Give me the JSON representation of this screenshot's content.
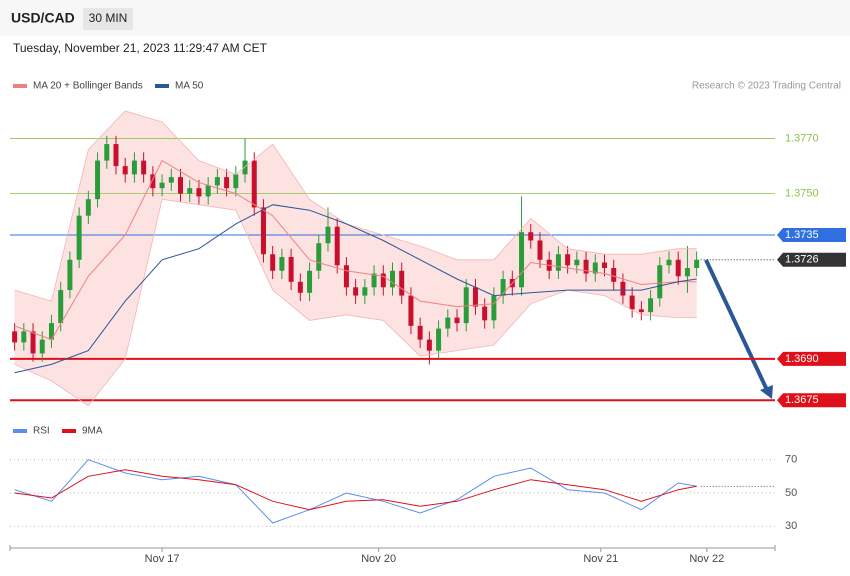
{
  "header": {
    "symbol": "USD/CAD",
    "timeframe": "30 MIN",
    "timestamp": "Tuesday, November 21, 2023 11:29:47 AM CET",
    "credit": "Research © 2023 Trading Central"
  },
  "chart_data": [
    {
      "type": "candlestick",
      "xlim": [
        -0.5,
        82.5
      ],
      "ylim": [
        1.367,
        1.3784
      ],
      "up_color": "#2a9d3a",
      "down_color": "#c8102e",
      "open": [
        1.37,
        1.3696,
        1.37,
        1.3692,
        1.3697,
        1.3703,
        1.3715,
        1.3726,
        1.3742,
        1.3748,
        1.3762,
        1.3768,
        1.376,
        1.3757,
        1.3762,
        1.3757,
        1.3752,
        1.3754,
        1.3756,
        1.375,
        1.3752,
        1.3749,
        1.3753,
        1.3756,
        1.3752,
        1.3757,
        1.3762,
        1.3745,
        1.3728,
        1.3722,
        1.3727,
        1.3718,
        1.3714,
        1.3722,
        1.3732,
        1.3738,
        1.3724,
        1.3716,
        1.3713,
        1.3716,
        1.3721,
        1.3716,
        1.3722,
        1.3713,
        1.3702,
        1.3697,
        1.3693,
        1.3701,
        1.3705,
        1.3703,
        1.3716,
        1.3709,
        1.3704,
        1.3713,
        1.3719,
        1.3716,
        1.3736,
        1.3733,
        1.3726,
        1.3722,
        1.3728,
        1.3724,
        1.3726,
        1.3721,
        1.3725,
        1.3723,
        1.3718,
        1.3713,
        1.3708,
        1.3707,
        1.3712,
        1.3724,
        1.3726,
        1.372,
        1.3723
      ],
      "high": [
        1.3703,
        1.3703,
        1.3703,
        1.37,
        1.3706,
        1.3718,
        1.3729,
        1.3745,
        1.3751,
        1.3765,
        1.3771,
        1.3771,
        1.3763,
        1.3765,
        1.3765,
        1.376,
        1.3757,
        1.3759,
        1.3759,
        1.3755,
        1.3755,
        1.3756,
        1.3759,
        1.3759,
        1.376,
        1.377,
        1.3765,
        1.3748,
        1.3731,
        1.373,
        1.373,
        1.3721,
        1.3725,
        1.3735,
        1.3745,
        1.3741,
        1.3727,
        1.3719,
        1.3719,
        1.3724,
        1.3724,
        1.3725,
        1.3725,
        1.3716,
        1.3705,
        1.37,
        1.3704,
        1.3708,
        1.3708,
        1.3719,
        1.3719,
        1.3712,
        1.3716,
        1.3722,
        1.3722,
        1.3749,
        1.3739,
        1.3736,
        1.3729,
        1.3731,
        1.3731,
        1.3729,
        1.3729,
        1.3728,
        1.3728,
        1.3726,
        1.3721,
        1.3716,
        1.3711,
        1.3715,
        1.3727,
        1.3729,
        1.3729,
        1.3731,
        1.3729
      ],
      "low": [
        1.3693,
        1.3693,
        1.3689,
        1.3689,
        1.3694,
        1.37,
        1.3712,
        1.3723,
        1.3739,
        1.3745,
        1.3759,
        1.3757,
        1.3754,
        1.3754,
        1.3754,
        1.3749,
        1.3749,
        1.3751,
        1.3747,
        1.3747,
        1.3746,
        1.3746,
        1.375,
        1.3749,
        1.3749,
        1.3754,
        1.3742,
        1.3725,
        1.3719,
        1.3719,
        1.3715,
        1.3711,
        1.3711,
        1.3719,
        1.3729,
        1.3721,
        1.3713,
        1.371,
        1.371,
        1.3713,
        1.3713,
        1.3713,
        1.371,
        1.3699,
        1.3694,
        1.3688,
        1.369,
        1.3698,
        1.37,
        1.37,
        1.3706,
        1.3701,
        1.3701,
        1.371,
        1.3713,
        1.3713,
        1.373,
        1.3723,
        1.3719,
        1.3719,
        1.3721,
        1.3721,
        1.3718,
        1.3718,
        1.372,
        1.3715,
        1.371,
        1.3705,
        1.3704,
        1.3704,
        1.3709,
        1.3721,
        1.3717,
        1.3714,
        1.372
      ],
      "close": [
        1.3696,
        1.37,
        1.3692,
        1.3697,
        1.3703,
        1.3715,
        1.3726,
        1.3742,
        1.3748,
        1.3762,
        1.3768,
        1.376,
        1.3757,
        1.3762,
        1.3757,
        1.3752,
        1.3754,
        1.3756,
        1.375,
        1.3752,
        1.3749,
        1.3753,
        1.3756,
        1.3752,
        1.3757,
        1.3762,
        1.3745,
        1.3728,
        1.3722,
        1.3727,
        1.3718,
        1.3714,
        1.3722,
        1.3732,
        1.3738,
        1.3724,
        1.3716,
        1.3713,
        1.3716,
        1.3721,
        1.3716,
        1.3722,
        1.3713,
        1.3702,
        1.3697,
        1.3693,
        1.3701,
        1.3705,
        1.3703,
        1.3716,
        1.3709,
        1.3704,
        1.3713,
        1.3719,
        1.3716,
        1.3736,
        1.3733,
        1.3726,
        1.3722,
        1.3728,
        1.3724,
        1.3726,
        1.3721,
        1.3725,
        1.3723,
        1.3718,
        1.3713,
        1.3708,
        1.3707,
        1.3712,
        1.3724,
        1.3726,
        1.372,
        1.3723,
        1.3726
      ],
      "bands": {
        "name": "MA 20 + Bollinger Bands",
        "color": "#f08080",
        "fill": "#fde2e2",
        "x": [
          0,
          4,
          8,
          12,
          16,
          20,
          24,
          28,
          32,
          36,
          40,
          44,
          48,
          52,
          56,
          60,
          64,
          68,
          72,
          74
        ],
        "upper": [
          1.3715,
          1.3711,
          1.3766,
          1.378,
          1.3776,
          1.3762,
          1.3757,
          1.3768,
          1.3748,
          1.3739,
          1.3735,
          1.3731,
          1.3726,
          1.3726,
          1.3741,
          1.373,
          1.3728,
          1.3728,
          1.373,
          1.373
        ],
        "middle": [
          1.3702,
          1.3697,
          1.372,
          1.3735,
          1.3762,
          1.3754,
          1.375,
          1.3742,
          1.3726,
          1.3722,
          1.372,
          1.3711,
          1.3709,
          1.371,
          1.3725,
          1.3723,
          1.3721,
          1.3717,
          1.3718,
          1.3718
        ],
        "lower": [
          1.3688,
          1.3682,
          1.3673,
          1.369,
          1.3748,
          1.3746,
          1.3744,
          1.3715,
          1.3704,
          1.3706,
          1.3704,
          1.3691,
          1.3693,
          1.3695,
          1.371,
          1.3715,
          1.3713,
          1.3706,
          1.3705,
          1.3705
        ]
      },
      "ma50": {
        "name": "MA 50",
        "color": "#2b5797",
        "x": [
          0,
          4,
          8,
          12,
          16,
          20,
          24,
          28,
          32,
          36,
          40,
          44,
          48,
          52,
          56,
          60,
          64,
          68,
          72,
          74
        ],
        "values": [
          1.3685,
          1.3688,
          1.3693,
          1.3711,
          1.3726,
          1.373,
          1.3739,
          1.3746,
          1.3744,
          1.3739,
          1.3733,
          1.3726,
          1.3719,
          1.3713,
          1.3714,
          1.3715,
          1.3715,
          1.3715,
          1.3718,
          1.3719
        ]
      },
      "levels": [
        {
          "value": 1.377,
          "label": "1.3770",
          "color": "#8bc34a",
          "boxed": false
        },
        {
          "value": 1.375,
          "label": "1.3750",
          "color": "#8bc34a",
          "boxed": false
        },
        {
          "value": 1.3735,
          "label": "1.3735",
          "color": "#2f6fe0",
          "boxed": true
        },
        {
          "value": 1.369,
          "label": "1.3690",
          "color": "#e0101a",
          "boxed": true
        },
        {
          "value": 1.3675,
          "label": "1.3675",
          "color": "#e0101a",
          "boxed": true
        }
      ],
      "current": {
        "value": 1.3726,
        "label": "1.3726",
        "color": "#333333"
      }
    },
    {
      "type": "line",
      "xlim": [
        -0.5,
        82.5
      ],
      "ylim": [
        20,
        80
      ],
      "yticks": [
        30,
        50,
        70
      ],
      "xticks": [
        {
          "value": 16,
          "label": "Nov 17"
        },
        {
          "value": 39.5,
          "label": "Nov 20"
        },
        {
          "value": 63.6,
          "label": "Nov 21"
        },
        {
          "value": 75.1,
          "label": "Nov 22"
        }
      ],
      "x": [
        0,
        4,
        8,
        12,
        16,
        20,
        24,
        28,
        32,
        36,
        40,
        44,
        48,
        52,
        56,
        60,
        64,
        68,
        72,
        74
      ],
      "series": [
        {
          "name": "RSI",
          "color": "#5b8def",
          "values": [
            52,
            45,
            70,
            62,
            58,
            60,
            55,
            32,
            40,
            50,
            45,
            38,
            46,
            60,
            65,
            52,
            50,
            40,
            56,
            54
          ]
        },
        {
          "name": "9MA",
          "color": "#e0101a",
          "values": [
            50,
            47,
            60,
            64,
            60,
            58,
            55,
            45,
            40,
            45,
            46,
            42,
            45,
            52,
            58,
            55,
            52,
            45,
            52,
            54
          ]
        }
      ]
    }
  ]
}
